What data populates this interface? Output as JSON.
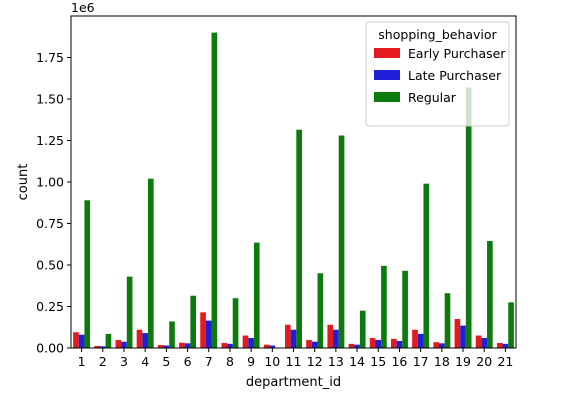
{
  "chart_data": {
    "type": "bar",
    "xlabel": "department_id",
    "ylabel": "count",
    "offset_label": "1e6",
    "ylim": [
      0,
      2.0
    ],
    "yticks": [
      "0.00",
      "0.25",
      "0.50",
      "0.75",
      "1.00",
      "1.25",
      "1.50",
      "1.75"
    ],
    "ytick_values": [
      0,
      0.25,
      0.5,
      0.75,
      1.0,
      1.25,
      1.5,
      1.75
    ],
    "categories": [
      "1",
      "2",
      "3",
      "4",
      "5",
      "6",
      "7",
      "8",
      "9",
      "10",
      "11",
      "12",
      "13",
      "14",
      "15",
      "16",
      "17",
      "18",
      "19",
      "20",
      "21"
    ],
    "legend": {
      "title": "shopping_behavior",
      "position": "upper right"
    },
    "series": [
      {
        "name": "Early Purchaser",
        "color": "#e41a1c",
        "values": [
          0.095,
          0.012,
          0.048,
          0.11,
          0.018,
          0.032,
          0.215,
          0.03,
          0.075,
          0.02,
          0.14,
          0.048,
          0.14,
          0.025,
          0.06,
          0.055,
          0.11,
          0.035,
          0.175,
          0.075,
          0.03
        ]
      },
      {
        "name": "Late Purchaser",
        "color": "#1f1fd8",
        "values": [
          0.08,
          0.01,
          0.038,
          0.09,
          0.015,
          0.028,
          0.165,
          0.025,
          0.06,
          0.015,
          0.11,
          0.038,
          0.11,
          0.02,
          0.048,
          0.042,
          0.085,
          0.028,
          0.135,
          0.06,
          0.025
        ]
      },
      {
        "name": "Regular",
        "color": "#0d7a0d",
        "values": [
          0.89,
          0.085,
          0.43,
          1.02,
          0.16,
          0.315,
          1.9,
          0.3,
          0.635,
          0.0,
          1.315,
          0.45,
          1.28,
          0.225,
          0.495,
          0.465,
          0.99,
          0.33,
          1.57,
          0.645,
          0.275
        ]
      }
    ]
  }
}
